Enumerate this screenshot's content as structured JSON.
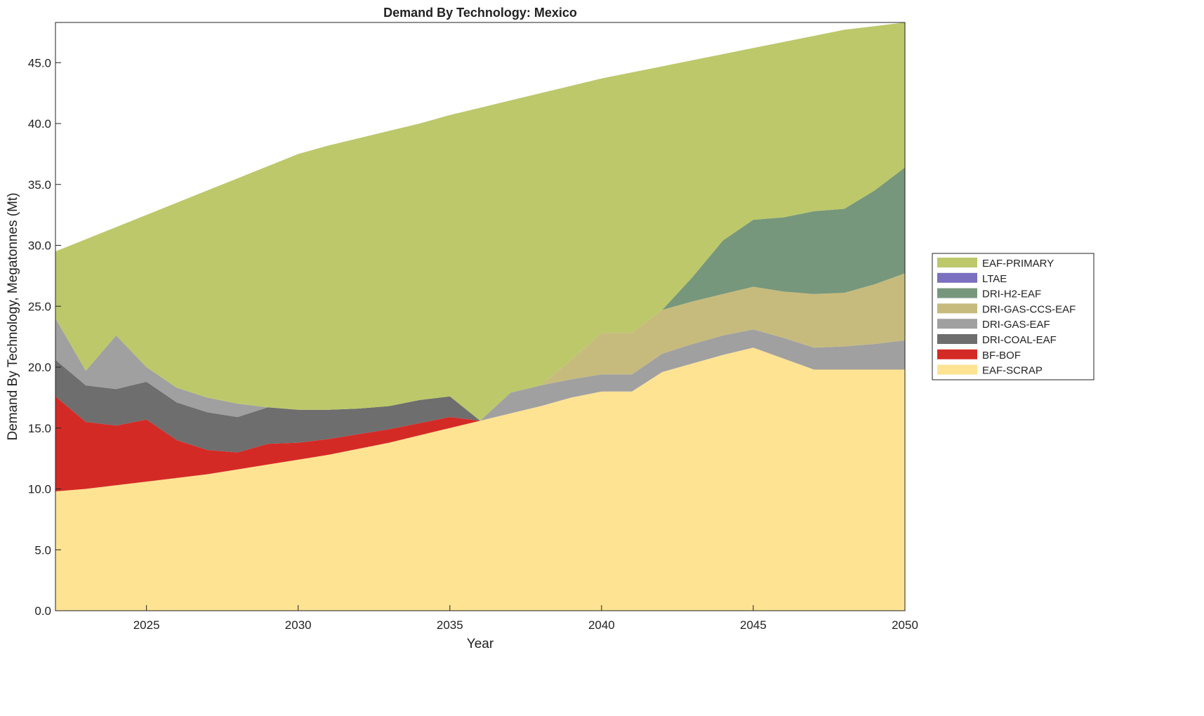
{
  "chart_data": {
    "type": "area",
    "stacked": true,
    "title": "Demand By Technology: Mexico",
    "xlabel": "Year",
    "ylabel": "Demand By Technology, Megatonnes (Mt)",
    "xlim": [
      2022,
      2050
    ],
    "ylim": [
      0,
      48.3
    ],
    "xticks": [
      2025,
      2030,
      2035,
      2040,
      2045,
      2050
    ],
    "yticks": [
      0,
      5,
      10,
      15,
      20,
      25,
      30,
      35,
      40,
      45
    ],
    "ytick_labels": [
      "0.0",
      "5.0",
      "10.0",
      "15.0",
      "20.0",
      "25.0",
      "30.0",
      "35.0",
      "40.0",
      "45.0"
    ],
    "legend_position": "right",
    "x": [
      2022,
      2023,
      2024,
      2025,
      2026,
      2027,
      2028,
      2029,
      2030,
      2031,
      2032,
      2033,
      2034,
      2035,
      2036,
      2037,
      2038,
      2039,
      2040,
      2041,
      2042,
      2043,
      2044,
      2045,
      2046,
      2047,
      2048,
      2049,
      2050
    ],
    "series": [
      {
        "name": "EAF-SCRAP",
        "color": "#fee393",
        "values": [
          9.8,
          10.0,
          10.3,
          10.6,
          10.9,
          11.2,
          11.6,
          12.0,
          12.4,
          12.8,
          13.3,
          13.8,
          14.4,
          15.0,
          15.6,
          16.2,
          16.8,
          17.5,
          18.0,
          18.0,
          19.6,
          20.3,
          21.0,
          21.6,
          20.7,
          19.8,
          19.8,
          19.8,
          19.8
        ]
      },
      {
        "name": "BF-BOF",
        "color": "#d42a26",
        "values": [
          7.8,
          5.5,
          4.9,
          5.1,
          3.1,
          2.0,
          1.4,
          1.7,
          1.4,
          1.3,
          1.2,
          1.1,
          1.0,
          0.9,
          0,
          0,
          0,
          0,
          0,
          0,
          0,
          0,
          0,
          0,
          0,
          0,
          0,
          0,
          0
        ]
      },
      {
        "name": "DRI-COAL-EAF",
        "color": "#6e6e6e",
        "values": [
          3.0,
          3.0,
          3.0,
          3.1,
          3.1,
          3.1,
          2.9,
          3.0,
          2.7,
          2.4,
          2.1,
          1.9,
          1.9,
          1.7,
          0,
          0,
          0,
          0,
          0,
          0,
          0,
          0,
          0,
          0,
          0,
          0,
          0,
          0,
          0
        ]
      },
      {
        "name": "DRI-GAS-EAF",
        "color": "#a0a0a0",
        "values": [
          3.4,
          1.2,
          4.4,
          1.2,
          1.2,
          1.2,
          1.1,
          0,
          0,
          0,
          0,
          0,
          0,
          0,
          0,
          1.7,
          1.7,
          1.5,
          1.4,
          1.4,
          1.5,
          1.6,
          1.6,
          1.5,
          1.7,
          1.8,
          1.9,
          2.1,
          2.4
        ]
      },
      {
        "name": "DRI-GAS-CCS-EAF",
        "color": "#c6bb7d",
        "values": [
          0,
          0,
          0,
          0,
          0,
          0,
          0,
          0,
          0,
          0,
          0,
          0,
          0,
          0,
          0,
          0,
          0,
          1.6,
          3.4,
          3.4,
          3.6,
          3.5,
          3.4,
          3.5,
          3.8,
          4.4,
          4.4,
          4.9,
          5.5
        ]
      },
      {
        "name": "DRI-H2-EAF",
        "color": "#76977b",
        "values": [
          0,
          0,
          0,
          0,
          0,
          0,
          0,
          0,
          0,
          0,
          0,
          0,
          0,
          0,
          0,
          0,
          0,
          0,
          0,
          0,
          0,
          2.0,
          4.4,
          5.5,
          6.1,
          6.8,
          6.9,
          7.7,
          8.7
        ]
      },
      {
        "name": "LTAE",
        "color": "#7b6fbf",
        "values": [
          0,
          0,
          0,
          0,
          0,
          0,
          0,
          0,
          0,
          0,
          0,
          0,
          0,
          0,
          0,
          0,
          0,
          0,
          0,
          0,
          0,
          0,
          0,
          0,
          0,
          0,
          0,
          0,
          0
        ]
      },
      {
        "name": "EAF-PRIMARY",
        "color": "#bdc86b",
        "values": [
          5.5,
          10.8,
          8.9,
          12.5,
          15.2,
          17.0,
          18.5,
          19.8,
          21.0,
          21.7,
          22.2,
          22.6,
          22.7,
          23.1,
          25.7,
          24.0,
          24.0,
          22.5,
          20.9,
          21.4,
          20.0,
          17.8,
          15.3,
          14.1,
          14.4,
          14.4,
          14.7,
          13.5,
          11.9
        ]
      }
    ]
  }
}
